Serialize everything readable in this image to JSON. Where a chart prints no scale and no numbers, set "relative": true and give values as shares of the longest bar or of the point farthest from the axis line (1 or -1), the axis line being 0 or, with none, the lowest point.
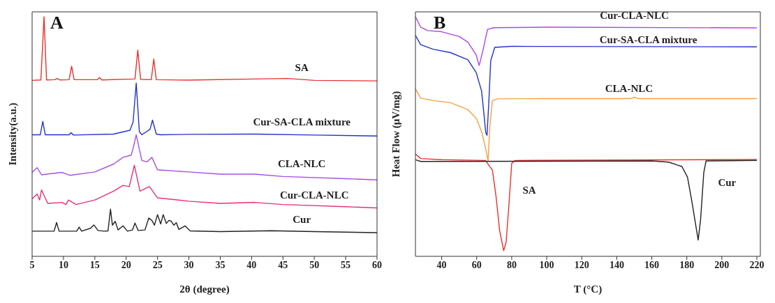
{
  "chart_data": [
    {
      "type": "line",
      "relative": true,
      "annotations": [
        "A"
      ],
      "xlabel": "2θ (degree)",
      "ylabel": "Intensity(a.u.)",
      "xlim": [
        5,
        60
      ],
      "xticks": [
        5,
        10,
        15,
        20,
        25,
        30,
        35,
        40,
        45,
        50,
        55,
        60
      ],
      "series": [
        {
          "name": "SA",
          "color": "#e8322e",
          "x": [
            5,
            6.4,
            6.9,
            7.3,
            8.6,
            9.0,
            9.4,
            10.9,
            11.3,
            11.7,
            15.4,
            15.75,
            16.1,
            21.4,
            21.85,
            22.3,
            24.0,
            24.4,
            24.8,
            30,
            40.7,
            45.7,
            50,
            60
          ],
          "values": [
            0.734,
            0.736,
            1.0,
            0.736,
            0.737,
            0.742,
            0.736,
            0.737,
            0.793,
            0.737,
            0.737,
            0.746,
            0.736,
            0.74,
            0.86,
            0.738,
            0.737,
            0.823,
            0.737,
            0.735,
            0.74,
            0.742,
            0.734,
            0.732
          ]
        },
        {
          "name": "Cur-SA-CLA mixture",
          "color": "#2233cc",
          "x": [
            5,
            6.3,
            6.7,
            7.1,
            10.9,
            11.2,
            11.6,
            18,
            20.6,
            21.1,
            21.6,
            22.1,
            22.5,
            23.8,
            24.2,
            24.8,
            25.5,
            30,
            40.5,
            50,
            60
          ],
          "values": [
            0.507,
            0.507,
            0.563,
            0.507,
            0.507,
            0.516,
            0.506,
            0.51,
            0.526,
            0.56,
            0.723,
            0.52,
            0.507,
            0.53,
            0.568,
            0.51,
            0.507,
            0.509,
            0.51,
            0.506,
            0.502
          ]
        },
        {
          "name": "CLA-NLC",
          "color": "#a64de6",
          "x": [
            5,
            5.8,
            6.5,
            8,
            9.8,
            11,
            15,
            18,
            19.5,
            20.8,
            21.1,
            21.6,
            22.5,
            23.3,
            24.1,
            25,
            30,
            35,
            40.5,
            45,
            55,
            60
          ],
          "values": [
            0.35,
            0.37,
            0.34,
            0.345,
            0.35,
            0.338,
            0.352,
            0.385,
            0.413,
            0.422,
            0.45,
            0.507,
            0.4,
            0.394,
            0.413,
            0.361,
            0.352,
            0.343,
            0.343,
            0.333,
            0.324,
            0.319
          ]
        },
        {
          "name": "Cur-CLA-NLC",
          "color": "#e8307a",
          "x": [
            5,
            5.8,
            6.2,
            6.5,
            7.5,
            9.8,
            10.4,
            10.8,
            12,
            15,
            18,
            19.5,
            20.5,
            21.3,
            22.2,
            23.7,
            25,
            30,
            35,
            40.5,
            45,
            55,
            60
          ],
          "values": [
            0.24,
            0.26,
            0.235,
            0.277,
            0.221,
            0.225,
            0.216,
            0.235,
            0.216,
            0.235,
            0.272,
            0.296,
            0.291,
            0.38,
            0.272,
            0.291,
            0.244,
            0.23,
            0.221,
            0.225,
            0.216,
            0.207,
            0.202
          ]
        },
        {
          "name": "Cur",
          "color": "#222222",
          "x": [
            5,
            8.5,
            8.9,
            9.3,
            12.1,
            12.5,
            12.9,
            14.3,
            14.85,
            15.5,
            16.5,
            17.1,
            17.5,
            17.8,
            18.25,
            18.7,
            19.5,
            20.2,
            21.0,
            21.4,
            21.9,
            23.0,
            23.6,
            24.1,
            24.5,
            25.0,
            25.5,
            25.9,
            26.4,
            26.8,
            27.2,
            27.6,
            28.0,
            28.4,
            29.4,
            30.2,
            35,
            43.2,
            50,
            60
          ],
          "values": [
            0.105,
            0.105,
            0.141,
            0.105,
            0.105,
            0.122,
            0.105,
            0.117,
            0.131,
            0.108,
            0.105,
            0.106,
            0.197,
            0.13,
            0.146,
            0.11,
            0.127,
            0.105,
            0.11,
            0.139,
            0.108,
            0.11,
            0.16,
            0.15,
            0.13,
            0.174,
            0.135,
            0.174,
            0.137,
            0.15,
            0.146,
            0.13,
            0.14,
            0.112,
            0.127,
            0.106,
            0.103,
            0.107,
            0.103,
            0.099
          ]
        }
      ]
    },
    {
      "type": "line",
      "relative": true,
      "annotations": [
        "B"
      ],
      "xlabel": "T (°C)",
      "ylabel": "Heat Flow (μV/mg)",
      "xlim": [
        25,
        222
      ],
      "xticks": [
        40,
        60,
        80,
        100,
        120,
        140,
        160,
        180,
        200,
        220
      ],
      "series": [
        {
          "name": "Cur-CLA-NLC",
          "color": "#b044e8",
          "x": [
            25,
            28,
            32,
            40,
            50,
            55,
            59.7,
            61.4,
            63.4,
            66.2,
            70,
            100,
            220
          ],
          "values": [
            1.0,
            0.956,
            0.942,
            0.937,
            0.917,
            0.893,
            0.84,
            0.796,
            0.854,
            0.947,
            0.954,
            0.956,
            0.953
          ]
        },
        {
          "name": "Cur-SA-CLA mixture",
          "color": "#2233cc",
          "x": [
            25,
            28,
            35,
            45,
            55,
            59.7,
            62.8,
            65.2,
            65.9,
            66.9,
            68,
            70.3,
            80,
            220
          ],
          "values": [
            0.922,
            0.883,
            0.864,
            0.85,
            0.82,
            0.767,
            0.689,
            0.515,
            0.505,
            0.641,
            0.816,
            0.872,
            0.876,
            0.874
          ]
        },
        {
          "name": "CLA-NLC",
          "color": "#f5a040",
          "x": [
            25,
            28,
            35,
            45,
            55,
            60,
            63,
            65.5,
            66.5,
            67.5,
            69,
            72,
            100,
            148,
            150.3,
            152,
            220
          ],
          "values": [
            0.699,
            0.66,
            0.65,
            0.641,
            0.612,
            0.573,
            0.515,
            0.437,
            0.398,
            0.544,
            0.65,
            0.657,
            0.658,
            0.658,
            0.664,
            0.658,
            0.658
          ]
        },
        {
          "name": "SA",
          "color": "#e8322e",
          "x": [
            25,
            28,
            40,
            65,
            69,
            71,
            73.1,
            75.4,
            76.8,
            78.3,
            80,
            82,
            220
          ],
          "values": [
            0.427,
            0.408,
            0.403,
            0.4,
            0.359,
            0.252,
            0.107,
            0.024,
            0.058,
            0.204,
            0.388,
            0.4,
            0.404
          ]
        },
        {
          "name": "Cur",
          "color": "#222222",
          "x": [
            25,
            28,
            40,
            160,
            169.7,
            174.5,
            177.2,
            180.4,
            182.8,
            186.5,
            187.9,
            189.7,
            191,
            220
          ],
          "values": [
            0.403,
            0.396,
            0.396,
            0.398,
            0.393,
            0.381,
            0.375,
            0.33,
            0.233,
            0.068,
            0.155,
            0.35,
            0.398,
            0.4
          ]
        }
      ]
    }
  ]
}
